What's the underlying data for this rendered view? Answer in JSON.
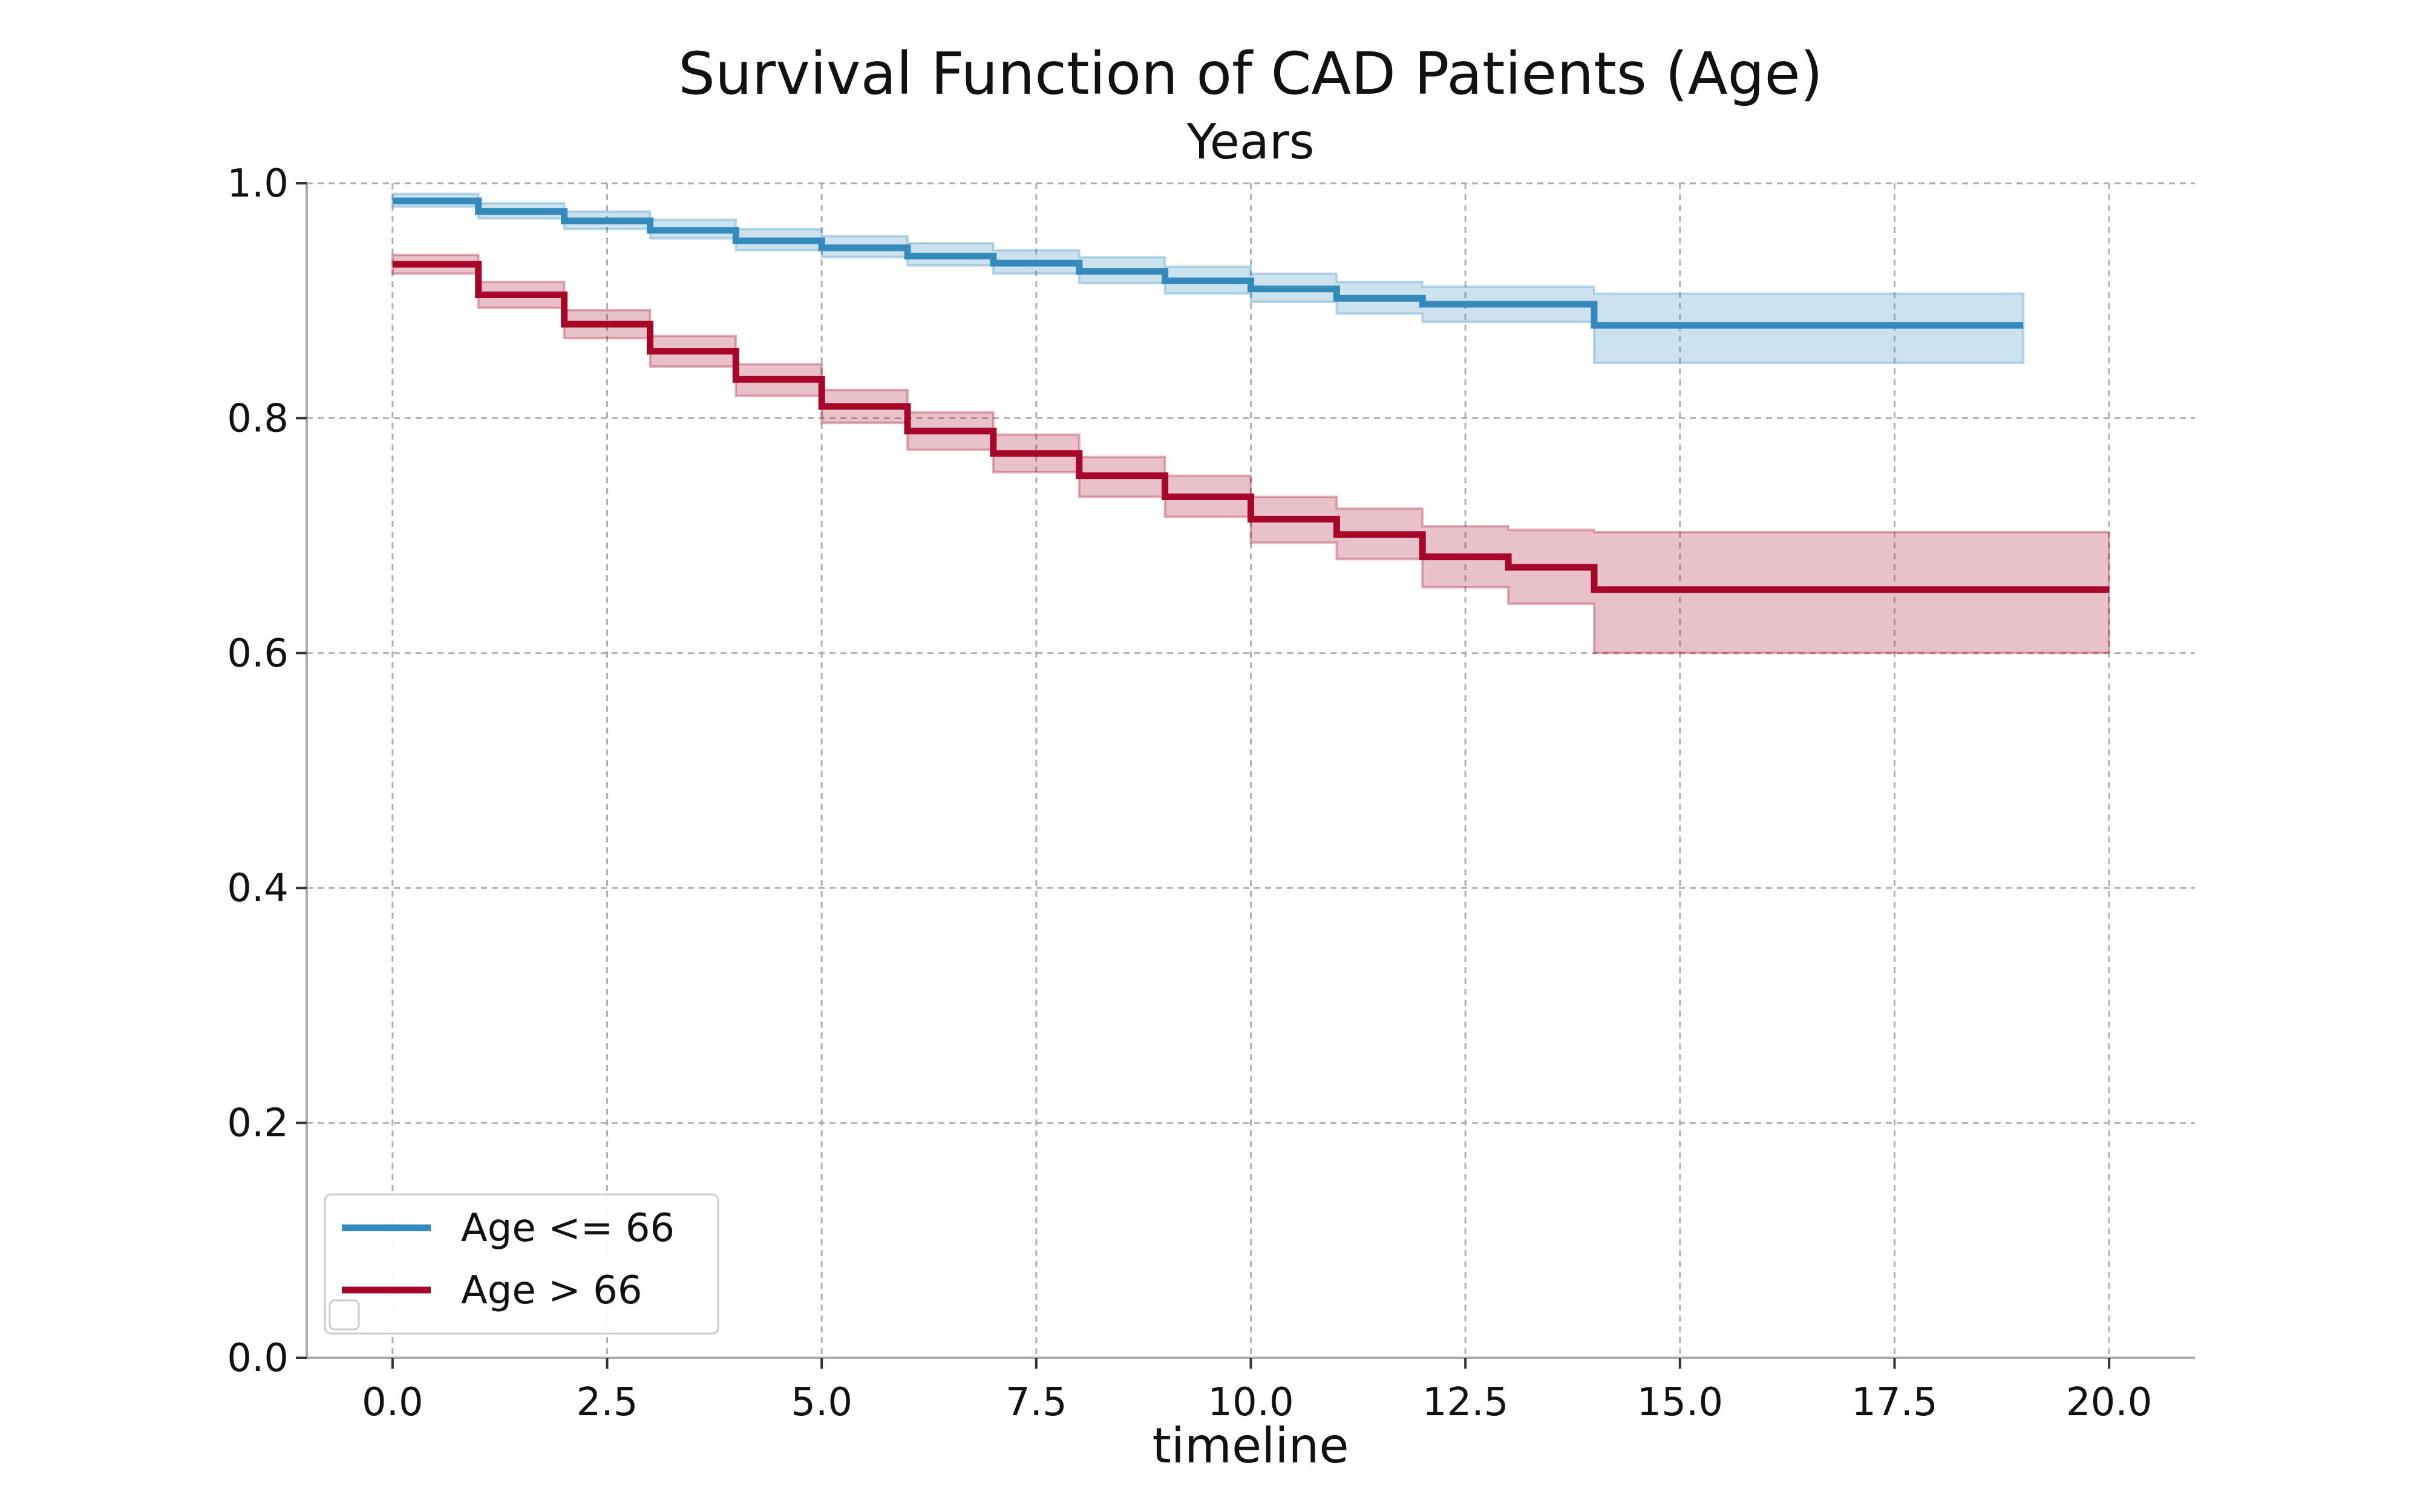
{
  "chart_data": {
    "type": "line",
    "title": "Survival Function of CAD Patients (Age)",
    "subtitle": "Years",
    "xlabel": "timeline",
    "ylabel": "",
    "xlim": [
      -1.0,
      21.0
    ],
    "ylim": [
      0.0,
      1.0
    ],
    "x_ticks": [
      0.0,
      2.5,
      5.0,
      7.5,
      10.0,
      12.5,
      15.0,
      17.5,
      20.0
    ],
    "x_tick_labels": [
      "0.0",
      "2.5",
      "5.0",
      "7.5",
      "10.0",
      "12.5",
      "15.0",
      "17.5",
      "20.0"
    ],
    "y_ticks": [
      0.0,
      0.2,
      0.4,
      0.6,
      0.8,
      1.0
    ],
    "y_tick_labels": [
      "0.0",
      "0.2",
      "0.4",
      "0.6",
      "0.8",
      "1.0"
    ],
    "grid": true,
    "legend_position": "lower-left",
    "series": [
      {
        "name": "Age <= 66",
        "color": "#348ABD",
        "x": [
          0,
          1,
          2,
          3,
          4,
          5,
          6,
          7,
          8,
          9,
          10,
          11,
          12,
          14,
          19
        ],
        "y": [
          0.985,
          0.976,
          0.968,
          0.96,
          0.951,
          0.945,
          0.938,
          0.932,
          0.925,
          0.917,
          0.91,
          0.902,
          0.897,
          0.879,
          0.879
        ],
        "ci_lower": [
          0.98,
          0.97,
          0.961,
          0.953,
          0.943,
          0.937,
          0.93,
          0.923,
          0.915,
          0.906,
          0.899,
          0.889,
          0.882,
          0.847,
          0.847
        ],
        "ci_upper": [
          0.991,
          0.983,
          0.976,
          0.969,
          0.961,
          0.955,
          0.949,
          0.943,
          0.937,
          0.929,
          0.923,
          0.916,
          0.912,
          0.906,
          0.906
        ]
      },
      {
        "name": "Age > 66",
        "color": "#A60628",
        "x": [
          0,
          1,
          2,
          3,
          4,
          5,
          6,
          7,
          8,
          9,
          10,
          11,
          12,
          13,
          14,
          20
        ],
        "y": [
          0.931,
          0.905,
          0.88,
          0.857,
          0.833,
          0.81,
          0.789,
          0.77,
          0.751,
          0.733,
          0.714,
          0.701,
          0.682,
          0.673,
          0.654,
          0.654
        ],
        "ci_lower": [
          0.923,
          0.894,
          0.868,
          0.844,
          0.819,
          0.796,
          0.773,
          0.754,
          0.733,
          0.716,
          0.694,
          0.68,
          0.656,
          0.642,
          0.6,
          0.6
        ],
        "ci_upper": [
          0.939,
          0.916,
          0.892,
          0.87,
          0.846,
          0.824,
          0.805,
          0.786,
          0.767,
          0.751,
          0.733,
          0.723,
          0.708,
          0.705,
          0.703,
          0.703
        ]
      }
    ]
  }
}
